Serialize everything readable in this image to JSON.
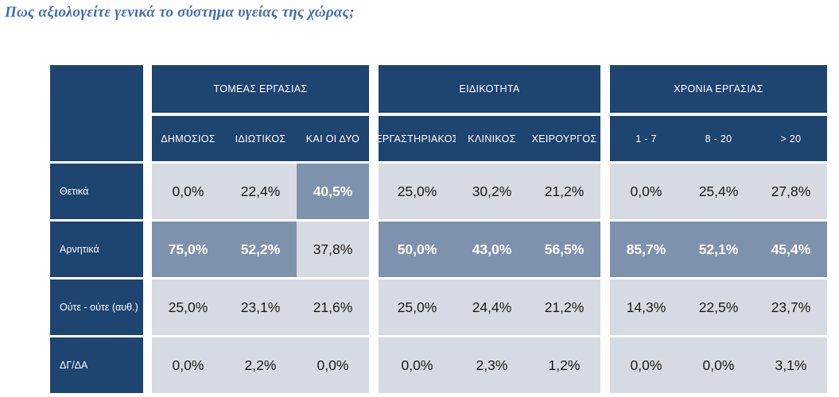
{
  "title": "Πως αξιολογείτε γενικά το σύστημα υγείας της χώρας;",
  "groups": [
    {
      "label": "ΤΟΜΕΑΣ ΕΡΓΑΣΙΑΣ",
      "columns": [
        "ΔΗΜΟΣΙΟΣ",
        "ΙΔΙΩΤΙΚΟΣ",
        "ΚΑΙ ΟΙ ΔΥΟ"
      ]
    },
    {
      "label": "ΕΙΔΙΚΟΤΗΤΑ",
      "columns": [
        "ΕΡΓΑΣΤΗΡΙΑΚΟΣ",
        "ΚΛΙΝΙΚΟΣ",
        "ΧΕΙΡΟΥΡΓΟΣ"
      ]
    },
    {
      "label": "ΧΡΟΝΙΑ ΕΡΓΑΣΙΑΣ",
      "columns": [
        "1 - 7",
        "8 - 20",
        "> 20"
      ]
    }
  ],
  "rows": [
    {
      "label": "Θετικά",
      "values": [
        "0,0%",
        "22,4%",
        "40,5%",
        "25,0%",
        "30,2%",
        "21,2%",
        "0,0%",
        "25,4%",
        "27,8%"
      ],
      "highlight": [
        false,
        false,
        true,
        false,
        false,
        false,
        false,
        false,
        false
      ]
    },
    {
      "label": "Αρνητικά",
      "values": [
        "75,0%",
        "52,2%",
        "37,8%",
        "50,0%",
        "43,0%",
        "56,5%",
        "85,7%",
        "52,1%",
        "45,4%"
      ],
      "highlight": [
        true,
        true,
        false,
        true,
        true,
        true,
        true,
        true,
        true
      ]
    },
    {
      "label": "Ούτε - ούτε (αυθ.)",
      "values": [
        "25,0%",
        "23,1%",
        "21,6%",
        "25,0%",
        "24,4%",
        "21,2%",
        "14,3%",
        "22,5%",
        "23,7%"
      ],
      "highlight": [
        false,
        false,
        false,
        false,
        false,
        false,
        false,
        false,
        false
      ]
    },
    {
      "label": "ΔΓ/ΔΑ",
      "values": [
        "0,0%",
        "2,2%",
        "0,0%",
        "0,0%",
        "2,3%",
        "1,2%",
        "0,0%",
        "0,0%",
        "3,1%"
      ],
      "highlight": [
        false,
        false,
        false,
        false,
        false,
        false,
        false,
        false,
        false
      ]
    }
  ]
}
